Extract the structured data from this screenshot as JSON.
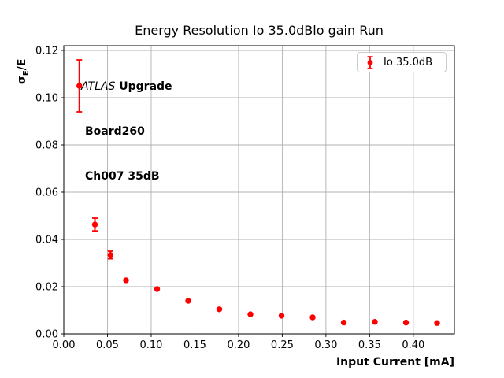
{
  "chart_data": {
    "type": "scatter",
    "title": "Energy Resolution Io 35.0dBlo gain Run",
    "xlabel": "Input Current [mA]",
    "ylabel": "σE/E",
    "ylabel_parts": {
      "sigma": "σ",
      "sub": "E",
      "rest": "/E"
    },
    "xlim": [
      0,
      0.447
    ],
    "ylim": [
      0,
      0.122
    ],
    "xticks": [
      0.0,
      0.05,
      0.1,
      0.15,
      0.2,
      0.25,
      0.3,
      0.35,
      0.4
    ],
    "xtick_labels": [
      "0.00",
      "0.05",
      "0.10",
      "0.15",
      "0.20",
      "0.25",
      "0.30",
      "0.35",
      "0.40"
    ],
    "yticks": [
      0.0,
      0.02,
      0.04,
      0.06,
      0.08,
      0.1,
      0.12
    ],
    "ytick_labels": [
      "0.00",
      "0.02",
      "0.04",
      "0.06",
      "0.08",
      "0.10",
      "0.12"
    ],
    "grid": true,
    "grid_color": "#b0b0b0",
    "spine_color": "#000000",
    "series": [
      {
        "name": "Io 35.0dB",
        "color": "#ff0000",
        "marker": "circle-with-errorbars",
        "x": [
          0.0178,
          0.0356,
          0.0534,
          0.0712,
          0.1068,
          0.1424,
          0.178,
          0.2136,
          0.2492,
          0.2848,
          0.3204,
          0.356,
          0.3916,
          0.4272
        ],
        "y": [
          0.105,
          0.0463,
          0.0334,
          0.0227,
          0.019,
          0.014,
          0.0104,
          0.0083,
          0.0077,
          0.007,
          0.0048,
          0.0051,
          0.0048,
          0.0046
        ],
        "yerr": [
          0.011,
          0.0027,
          0.0016,
          0.0008,
          0.0006,
          0.0005,
          0.0005,
          0.0004,
          0.0004,
          0.0003,
          0.0003,
          0.0003,
          0.0003,
          0.0003
        ]
      }
    ],
    "legend": {
      "position": "upper right",
      "label": "Io 35.0dB"
    },
    "annotation": {
      "line1_italic": "ATLAS",
      "line1_bold": " Upgrade",
      "line2": "Board260",
      "line3": "Ch007 35dB"
    }
  }
}
